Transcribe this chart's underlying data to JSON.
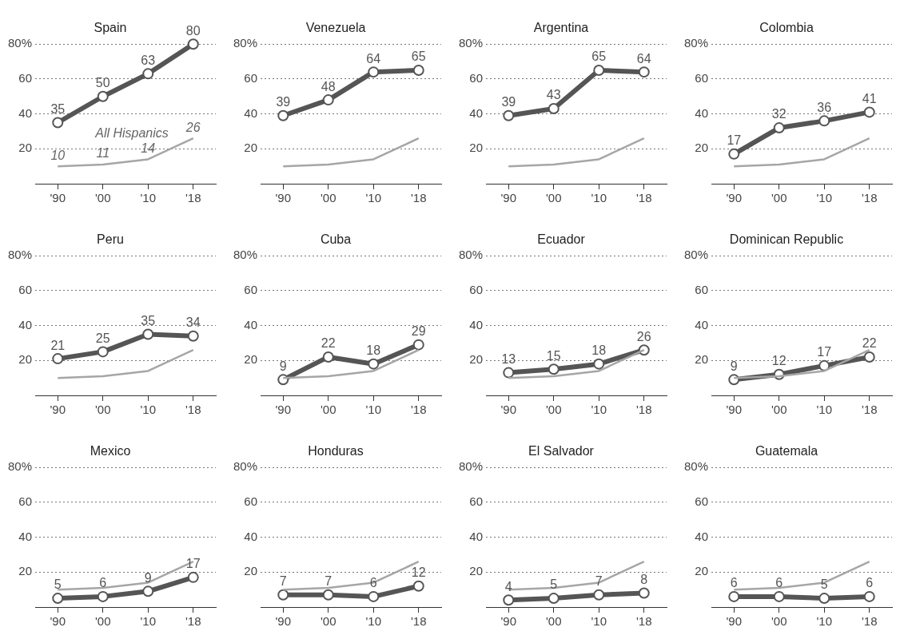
{
  "chart_data": [
    {
      "type": "line",
      "title": "Spain",
      "categories": [
        "'90",
        "'00",
        "'10",
        "'18"
      ],
      "ylim": [
        0,
        80
      ],
      "yticks": [
        {
          "value": 20,
          "label": "20"
        },
        {
          "value": 40,
          "label": "40"
        },
        {
          "value": 60,
          "label": "60"
        },
        {
          "value": 80,
          "label": "80%"
        }
      ],
      "grid": "y",
      "legend": false,
      "series": [
        {
          "name": "All Hispanics",
          "color": "#a6a6a6",
          "values": [
            10,
            11,
            14,
            26
          ],
          "value_labels": [
            "10",
            "11",
            "14",
            "26"
          ],
          "marker": "none"
        },
        {
          "color": "#555555",
          "values": [
            35,
            50,
            63,
            80
          ],
          "value_labels": [
            "35",
            "50",
            "63",
            "80"
          ],
          "marker": "circle"
        }
      ]
    },
    {
      "type": "line",
      "title": "Venezuela",
      "categories": [
        "'90",
        "'00",
        "'10",
        "'18"
      ],
      "ylim": [
        0,
        80
      ],
      "yticks": [
        {
          "value": 20,
          "label": "20"
        },
        {
          "value": 40,
          "label": "40"
        },
        {
          "value": 60,
          "label": "60"
        },
        {
          "value": 80,
          "label": "80%"
        }
      ],
      "grid": "y",
      "legend": false,
      "series": [
        {
          "color": "#a6a6a6",
          "values": [
            10,
            11,
            14,
            26
          ],
          "marker": "none"
        },
        {
          "color": "#555555",
          "values": [
            39,
            48,
            64,
            65
          ],
          "value_labels": [
            "39",
            "48",
            "64",
            "65"
          ],
          "marker": "circle"
        }
      ]
    },
    {
      "type": "line",
      "title": "Argentina",
      "categories": [
        "'90",
        "'00",
        "'10",
        "'18"
      ],
      "ylim": [
        0,
        80
      ],
      "yticks": [
        {
          "value": 20,
          "label": "20"
        },
        {
          "value": 40,
          "label": "40"
        },
        {
          "value": 60,
          "label": "60"
        },
        {
          "value": 80,
          "label": "80%"
        }
      ],
      "grid": "y",
      "legend": false,
      "series": [
        {
          "color": "#a6a6a6",
          "values": [
            10,
            11,
            14,
            26
          ],
          "marker": "none"
        },
        {
          "color": "#555555",
          "values": [
            39,
            43,
            65,
            64
          ],
          "value_labels": [
            "39",
            "43",
            "65",
            "64"
          ],
          "marker": "circle"
        }
      ]
    },
    {
      "type": "line",
      "title": "Colombia",
      "categories": [
        "'90",
        "'00",
        "'10",
        "'18"
      ],
      "ylim": [
        0,
        80
      ],
      "yticks": [
        {
          "value": 20,
          "label": "20"
        },
        {
          "value": 40,
          "label": "40"
        },
        {
          "value": 60,
          "label": "60"
        },
        {
          "value": 80,
          "label": "80%"
        }
      ],
      "grid": "y",
      "legend": false,
      "series": [
        {
          "color": "#a6a6a6",
          "values": [
            10,
            11,
            14,
            26
          ],
          "marker": "none"
        },
        {
          "color": "#555555",
          "values": [
            17,
            32,
            36,
            41
          ],
          "value_labels": [
            "17",
            "32",
            "36",
            "41"
          ],
          "marker": "circle"
        }
      ]
    },
    {
      "type": "line",
      "title": "Peru",
      "categories": [
        "'90",
        "'00",
        "'10",
        "'18"
      ],
      "ylim": [
        0,
        80
      ],
      "yticks": [
        {
          "value": 20,
          "label": "20"
        },
        {
          "value": 40,
          "label": "40"
        },
        {
          "value": 60,
          "label": "60"
        },
        {
          "value": 80,
          "label": "80%"
        }
      ],
      "grid": "y",
      "legend": false,
      "series": [
        {
          "color": "#a6a6a6",
          "values": [
            10,
            11,
            14,
            26
          ],
          "marker": "none"
        },
        {
          "color": "#555555",
          "values": [
            21,
            25,
            35,
            34
          ],
          "value_labels": [
            "21",
            "25",
            "35",
            "34"
          ],
          "marker": "circle"
        }
      ]
    },
    {
      "type": "line",
      "title": "Cuba",
      "categories": [
        "'90",
        "'00",
        "'10",
        "'18"
      ],
      "ylim": [
        0,
        80
      ],
      "yticks": [
        {
          "value": 20,
          "label": "20"
        },
        {
          "value": 40,
          "label": "40"
        },
        {
          "value": 60,
          "label": "60"
        },
        {
          "value": 80,
          "label": "80%"
        }
      ],
      "grid": "y",
      "legend": false,
      "series": [
        {
          "color": "#a6a6a6",
          "values": [
            10,
            11,
            14,
            26
          ],
          "marker": "none"
        },
        {
          "color": "#555555",
          "values": [
            9,
            22,
            18,
            29
          ],
          "value_labels": [
            "9",
            "22",
            "18",
            "29"
          ],
          "marker": "circle"
        }
      ]
    },
    {
      "type": "line",
      "title": "Ecuador",
      "categories": [
        "'90",
        "'00",
        "'10",
        "'18"
      ],
      "ylim": [
        0,
        80
      ],
      "yticks": [
        {
          "value": 20,
          "label": "20"
        },
        {
          "value": 40,
          "label": "40"
        },
        {
          "value": 60,
          "label": "60"
        },
        {
          "value": 80,
          "label": "80%"
        }
      ],
      "grid": "y",
      "legend": false,
      "series": [
        {
          "color": "#a6a6a6",
          "values": [
            10,
            11,
            14,
            26
          ],
          "marker": "none"
        },
        {
          "color": "#555555",
          "values": [
            13,
            15,
            18,
            26
          ],
          "value_labels": [
            "13",
            "15",
            "18",
            "26"
          ],
          "marker": "circle"
        }
      ]
    },
    {
      "type": "line",
      "title": "Dominican Republic",
      "categories": [
        "'90",
        "'00",
        "'10",
        "'18"
      ],
      "ylim": [
        0,
        80
      ],
      "yticks": [
        {
          "value": 20,
          "label": "20"
        },
        {
          "value": 40,
          "label": "40"
        },
        {
          "value": 60,
          "label": "60"
        },
        {
          "value": 80,
          "label": "80%"
        }
      ],
      "grid": "y",
      "legend": false,
      "series": [
        {
          "color": "#a6a6a6",
          "values": [
            10,
            11,
            14,
            26
          ],
          "marker": "none"
        },
        {
          "color": "#555555",
          "values": [
            9,
            12,
            17,
            22
          ],
          "value_labels": [
            "9",
            "12",
            "17",
            "22"
          ],
          "marker": "circle"
        }
      ]
    },
    {
      "type": "line",
      "title": "Mexico",
      "categories": [
        "'90",
        "'00",
        "'10",
        "'18"
      ],
      "ylim": [
        0,
        80
      ],
      "yticks": [
        {
          "value": 20,
          "label": "20"
        },
        {
          "value": 40,
          "label": "40"
        },
        {
          "value": 60,
          "label": "60"
        },
        {
          "value": 80,
          "label": "80%"
        }
      ],
      "grid": "y",
      "legend": false,
      "series": [
        {
          "color": "#a6a6a6",
          "values": [
            10,
            11,
            14,
            26
          ],
          "marker": "none"
        },
        {
          "color": "#555555",
          "values": [
            5,
            6,
            9,
            17
          ],
          "value_labels": [
            "5",
            "6",
            "9",
            "17"
          ],
          "marker": "circle"
        }
      ]
    },
    {
      "type": "line",
      "title": "Honduras",
      "categories": [
        "'90",
        "'00",
        "'10",
        "'18"
      ],
      "ylim": [
        0,
        80
      ],
      "yticks": [
        {
          "value": 20,
          "label": "20"
        },
        {
          "value": 40,
          "label": "40"
        },
        {
          "value": 60,
          "label": "60"
        },
        {
          "value": 80,
          "label": "80%"
        }
      ],
      "grid": "y",
      "legend": false,
      "series": [
        {
          "color": "#a6a6a6",
          "values": [
            10,
            11,
            14,
            26
          ],
          "marker": "none"
        },
        {
          "color": "#555555",
          "values": [
            7,
            7,
            6,
            12
          ],
          "value_labels": [
            "7",
            "7",
            "6",
            "12"
          ],
          "marker": "circle"
        }
      ]
    },
    {
      "type": "line",
      "title": "El Salvador",
      "categories": [
        "'90",
        "'00",
        "'10",
        "'18"
      ],
      "ylim": [
        0,
        80
      ],
      "yticks": [
        {
          "value": 20,
          "label": "20"
        },
        {
          "value": 40,
          "label": "40"
        },
        {
          "value": 60,
          "label": "60"
        },
        {
          "value": 80,
          "label": "80%"
        }
      ],
      "grid": "y",
      "legend": false,
      "series": [
        {
          "color": "#a6a6a6",
          "values": [
            10,
            11,
            14,
            26
          ],
          "marker": "none"
        },
        {
          "color": "#555555",
          "values": [
            4,
            5,
            7,
            8
          ],
          "value_labels": [
            "4",
            "5",
            "7",
            "8"
          ],
          "marker": "circle"
        }
      ]
    },
    {
      "type": "line",
      "title": "Guatemala",
      "categories": [
        "'90",
        "'00",
        "'10",
        "'18"
      ],
      "ylim": [
        0,
        80
      ],
      "yticks": [
        {
          "value": 20,
          "label": "20"
        },
        {
          "value": 40,
          "label": "40"
        },
        {
          "value": 60,
          "label": "60"
        },
        {
          "value": 80,
          "label": "80%"
        }
      ],
      "grid": "y",
      "legend": false,
      "series": [
        {
          "color": "#a6a6a6",
          "values": [
            10,
            11,
            14,
            26
          ],
          "marker": "none"
        },
        {
          "color": "#555555",
          "values": [
            6,
            6,
            5,
            6
          ],
          "value_labels": [
            "6",
            "6",
            "5",
            "6"
          ],
          "marker": "circle"
        }
      ]
    }
  ]
}
